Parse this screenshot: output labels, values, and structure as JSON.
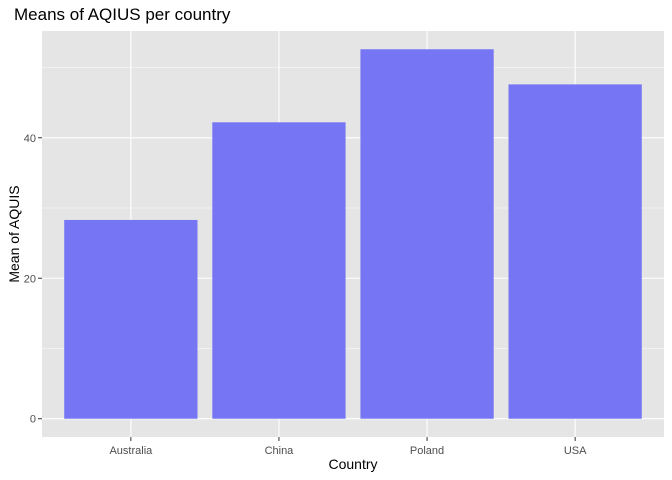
{
  "chart_data": {
    "type": "bar",
    "title": "Means of AQIUS per country",
    "xlabel": "Country",
    "ylabel": "Mean of AQUIS",
    "categories": [
      "Australia",
      "China",
      "Poland",
      "USA"
    ],
    "values": [
      28.3,
      42.2,
      52.6,
      47.6
    ],
    "ylim": [
      -2.6,
      55.2
    ],
    "yticks": [
      0,
      20,
      40
    ],
    "grid": true,
    "bar_color": "#7373f5",
    "panel_color": "#e5e5e5",
    "grid_color": "#ffffff"
  }
}
